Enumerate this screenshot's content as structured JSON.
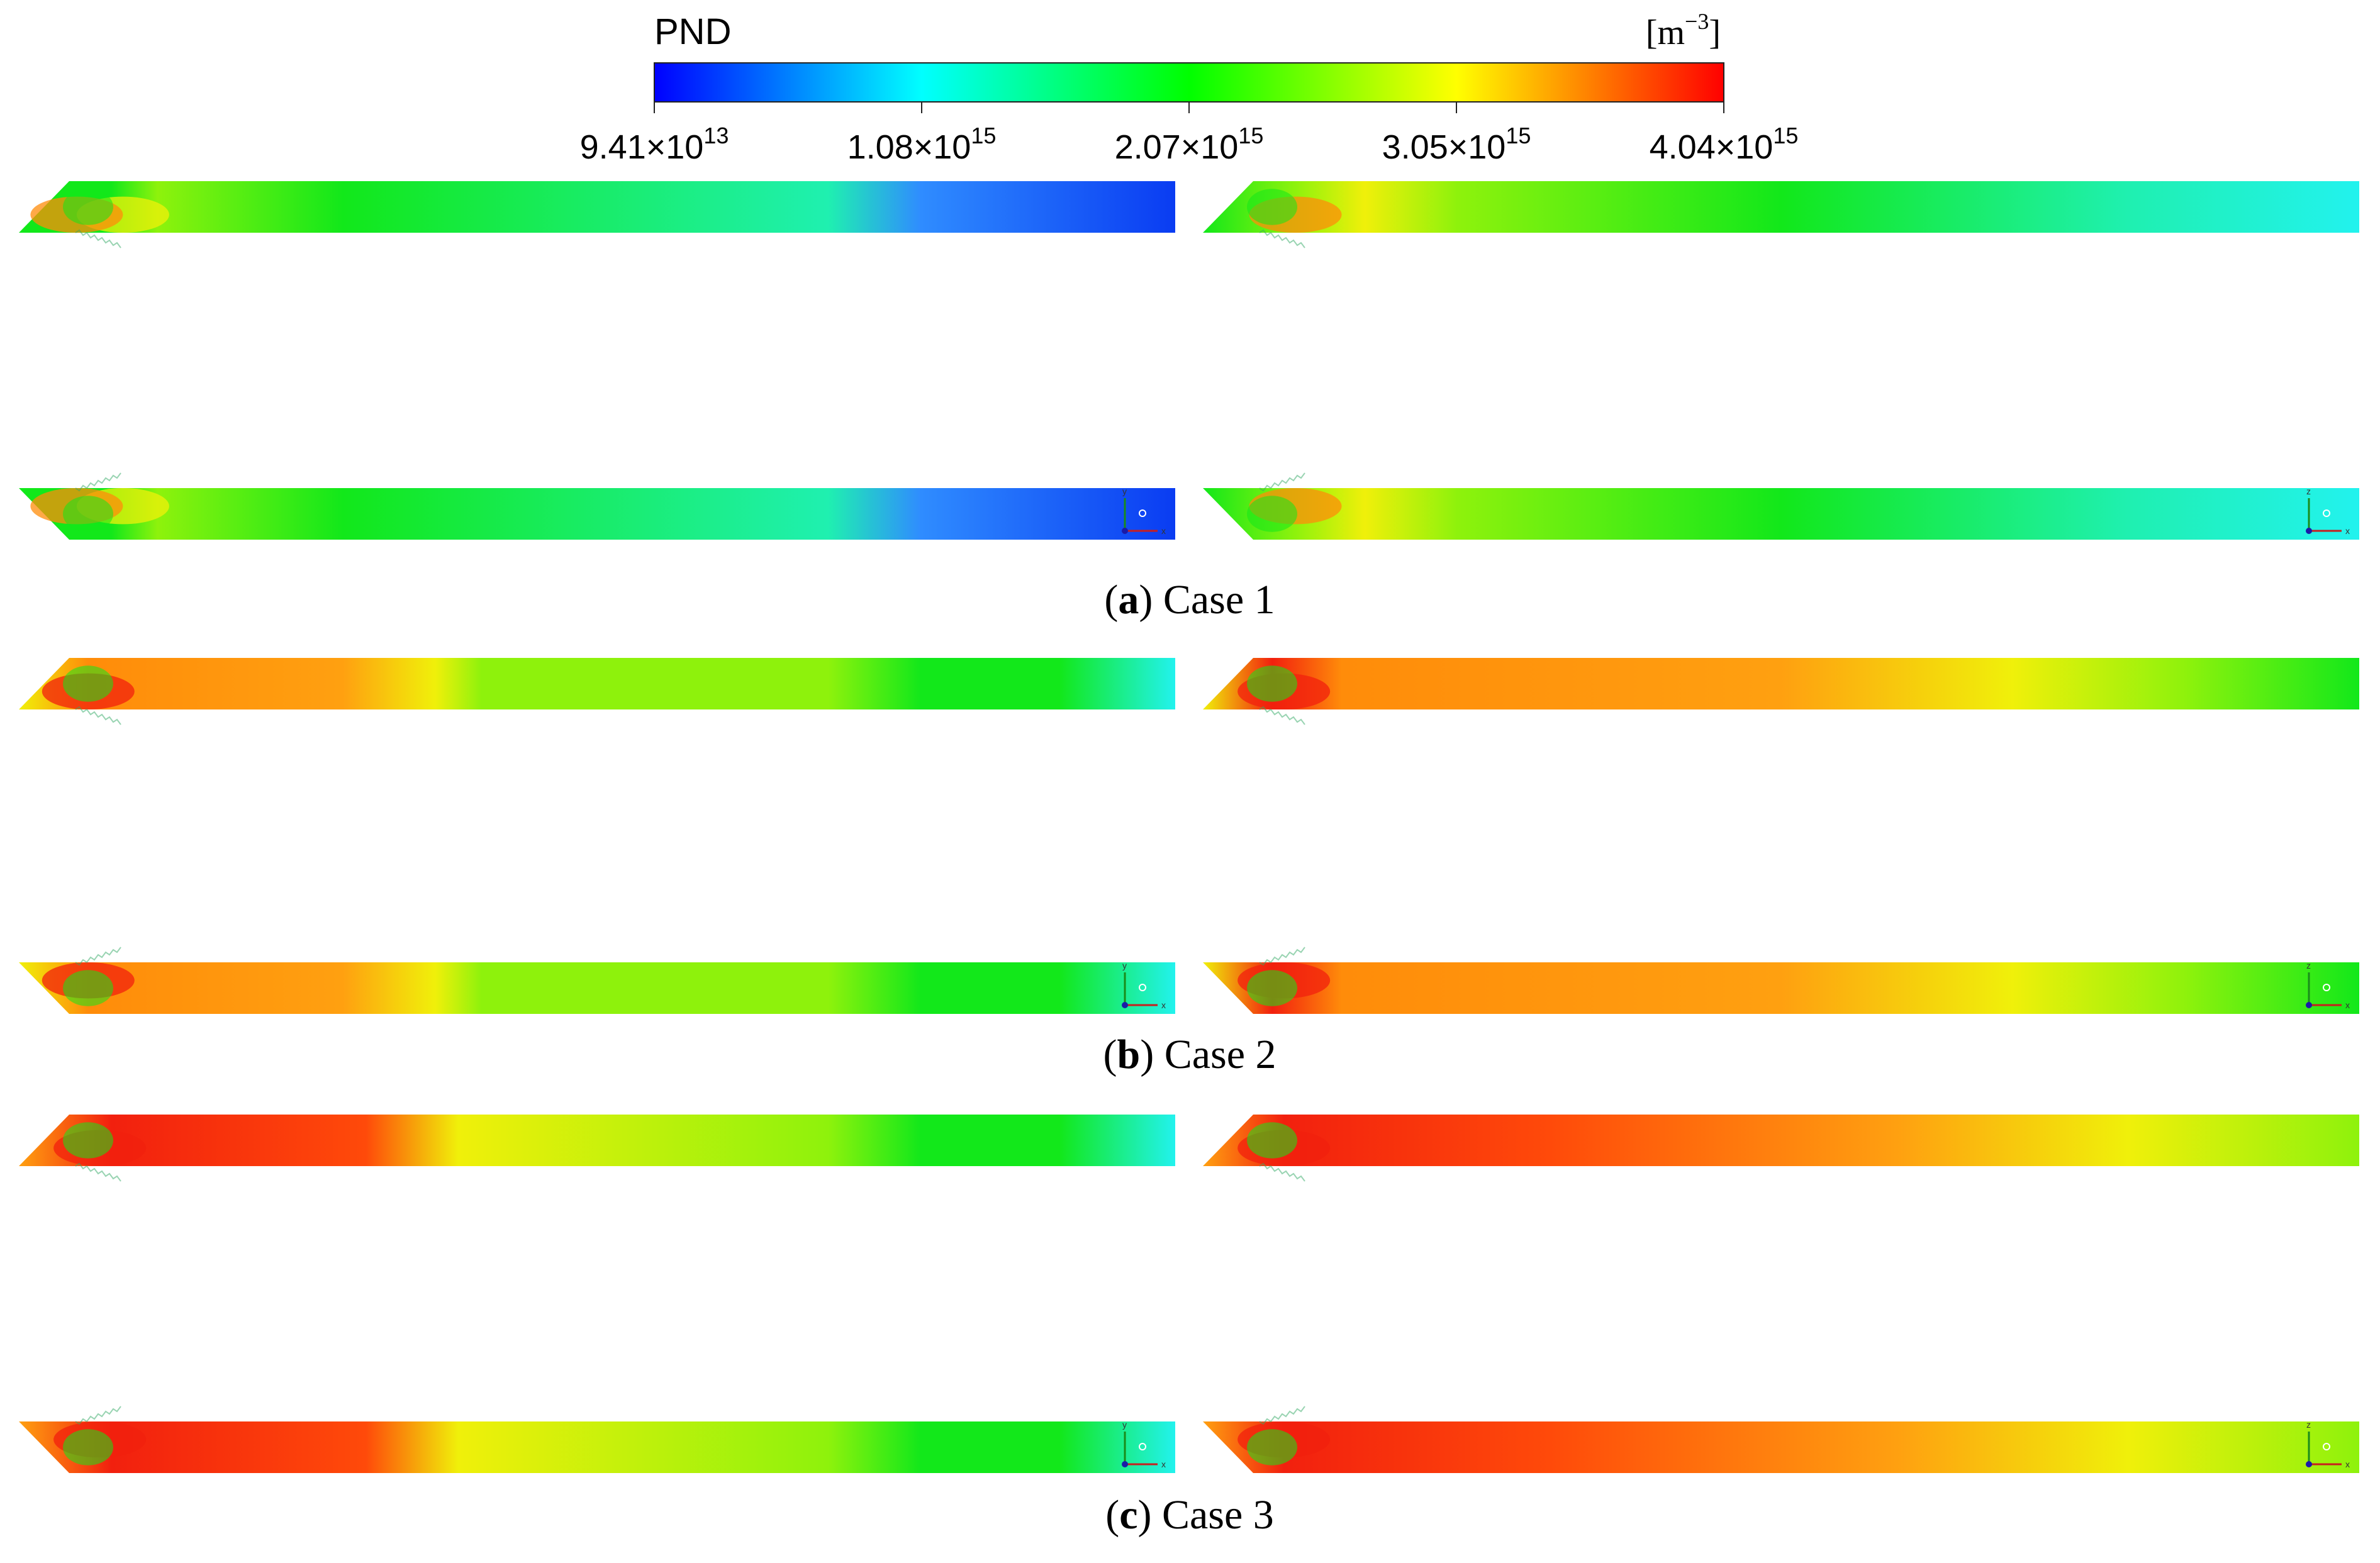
{
  "colorbar": {
    "title": "PND",
    "unit": "[m",
    "unit_exp": "−3",
    "unit_close": "]",
    "ticks": [
      {
        "mant": "9.41×10",
        "exp": "13"
      },
      {
        "mant": "1.08×10",
        "exp": "15"
      },
      {
        "mant": "2.07×10",
        "exp": "15"
      },
      {
        "mant": "3.05×10",
        "exp": "15"
      },
      {
        "mant": "4.04×10",
        "exp": "15"
      }
    ],
    "min_value": 94100000000000.0,
    "max_value": 4040000000000000.0
  },
  "axis_triad": {
    "left": {
      "vertical": "y",
      "horizontal": "x"
    },
    "right": {
      "vertical": "z",
      "horizontal": "x"
    }
  },
  "cases": [
    {
      "letter": "a",
      "title": "Case 1"
    },
    {
      "letter": "b",
      "title": "Case 2"
    },
    {
      "letter": "c",
      "title": "Case 3"
    }
  ]
}
